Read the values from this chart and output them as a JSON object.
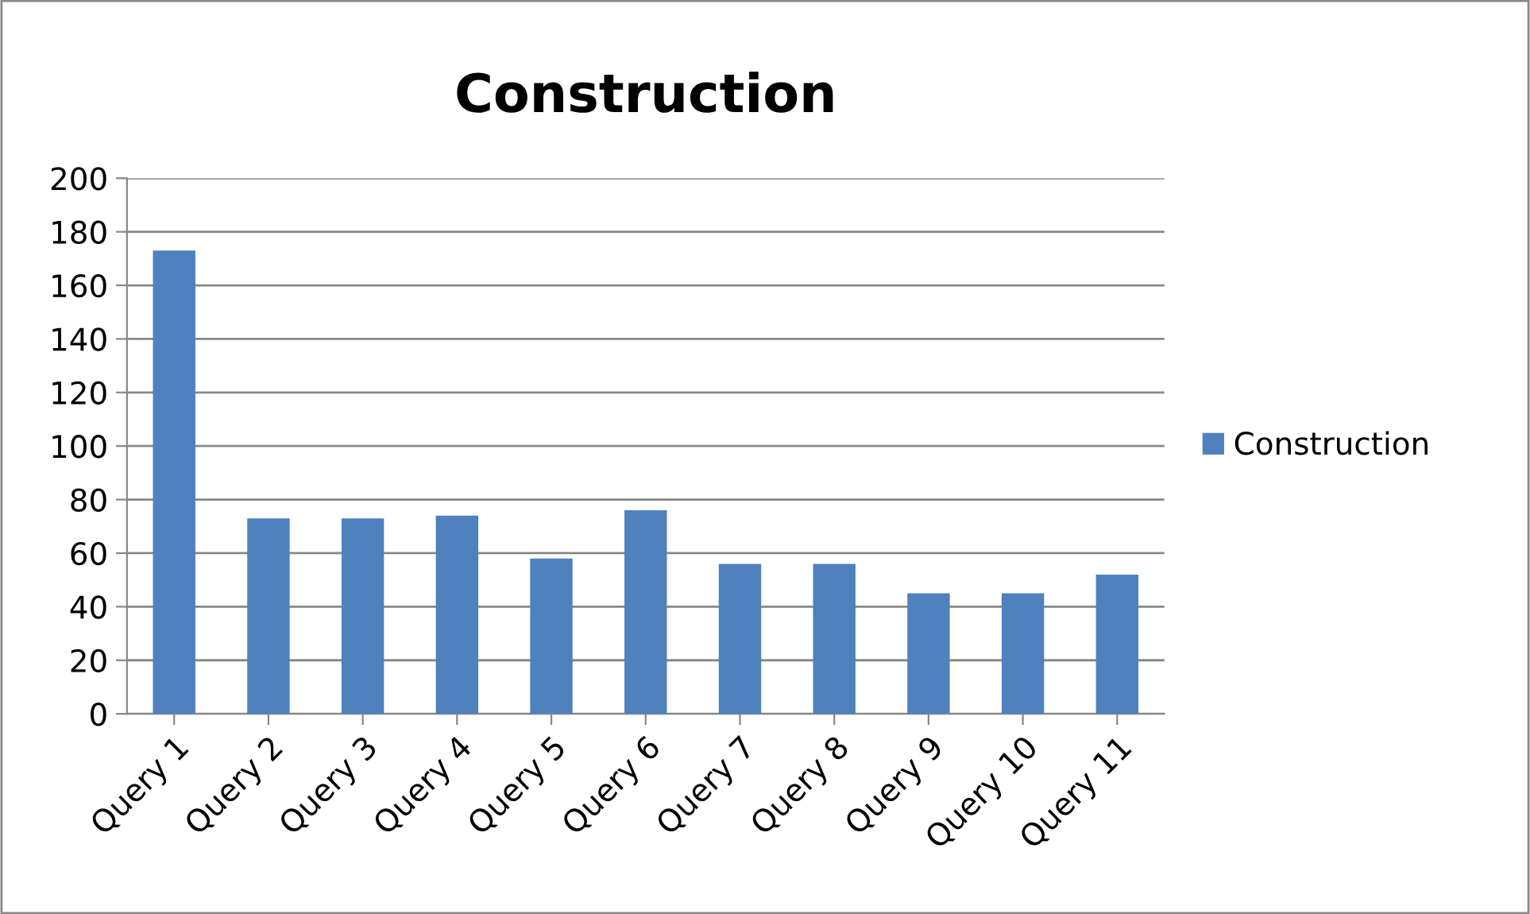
{
  "chart_data": {
    "type": "bar",
    "title": "Construction",
    "categories": [
      "Query 1",
      "Query 2",
      "Query 3",
      "Query 4",
      "Query 5",
      "Query 6",
      "Query 7",
      "Query 8",
      "Query 9",
      "Query 10",
      "Query 11"
    ],
    "series": [
      {
        "name": "Construction",
        "color": "#4f81bd",
        "values": [
          173,
          73,
          73,
          74,
          58,
          76,
          56,
          56,
          45,
          45,
          52
        ]
      }
    ],
    "ylim": [
      0,
      200
    ],
    "yticks": [
      0,
      20,
      40,
      60,
      80,
      100,
      120,
      140,
      160,
      180,
      200
    ],
    "grid": "y",
    "legend": "right"
  }
}
